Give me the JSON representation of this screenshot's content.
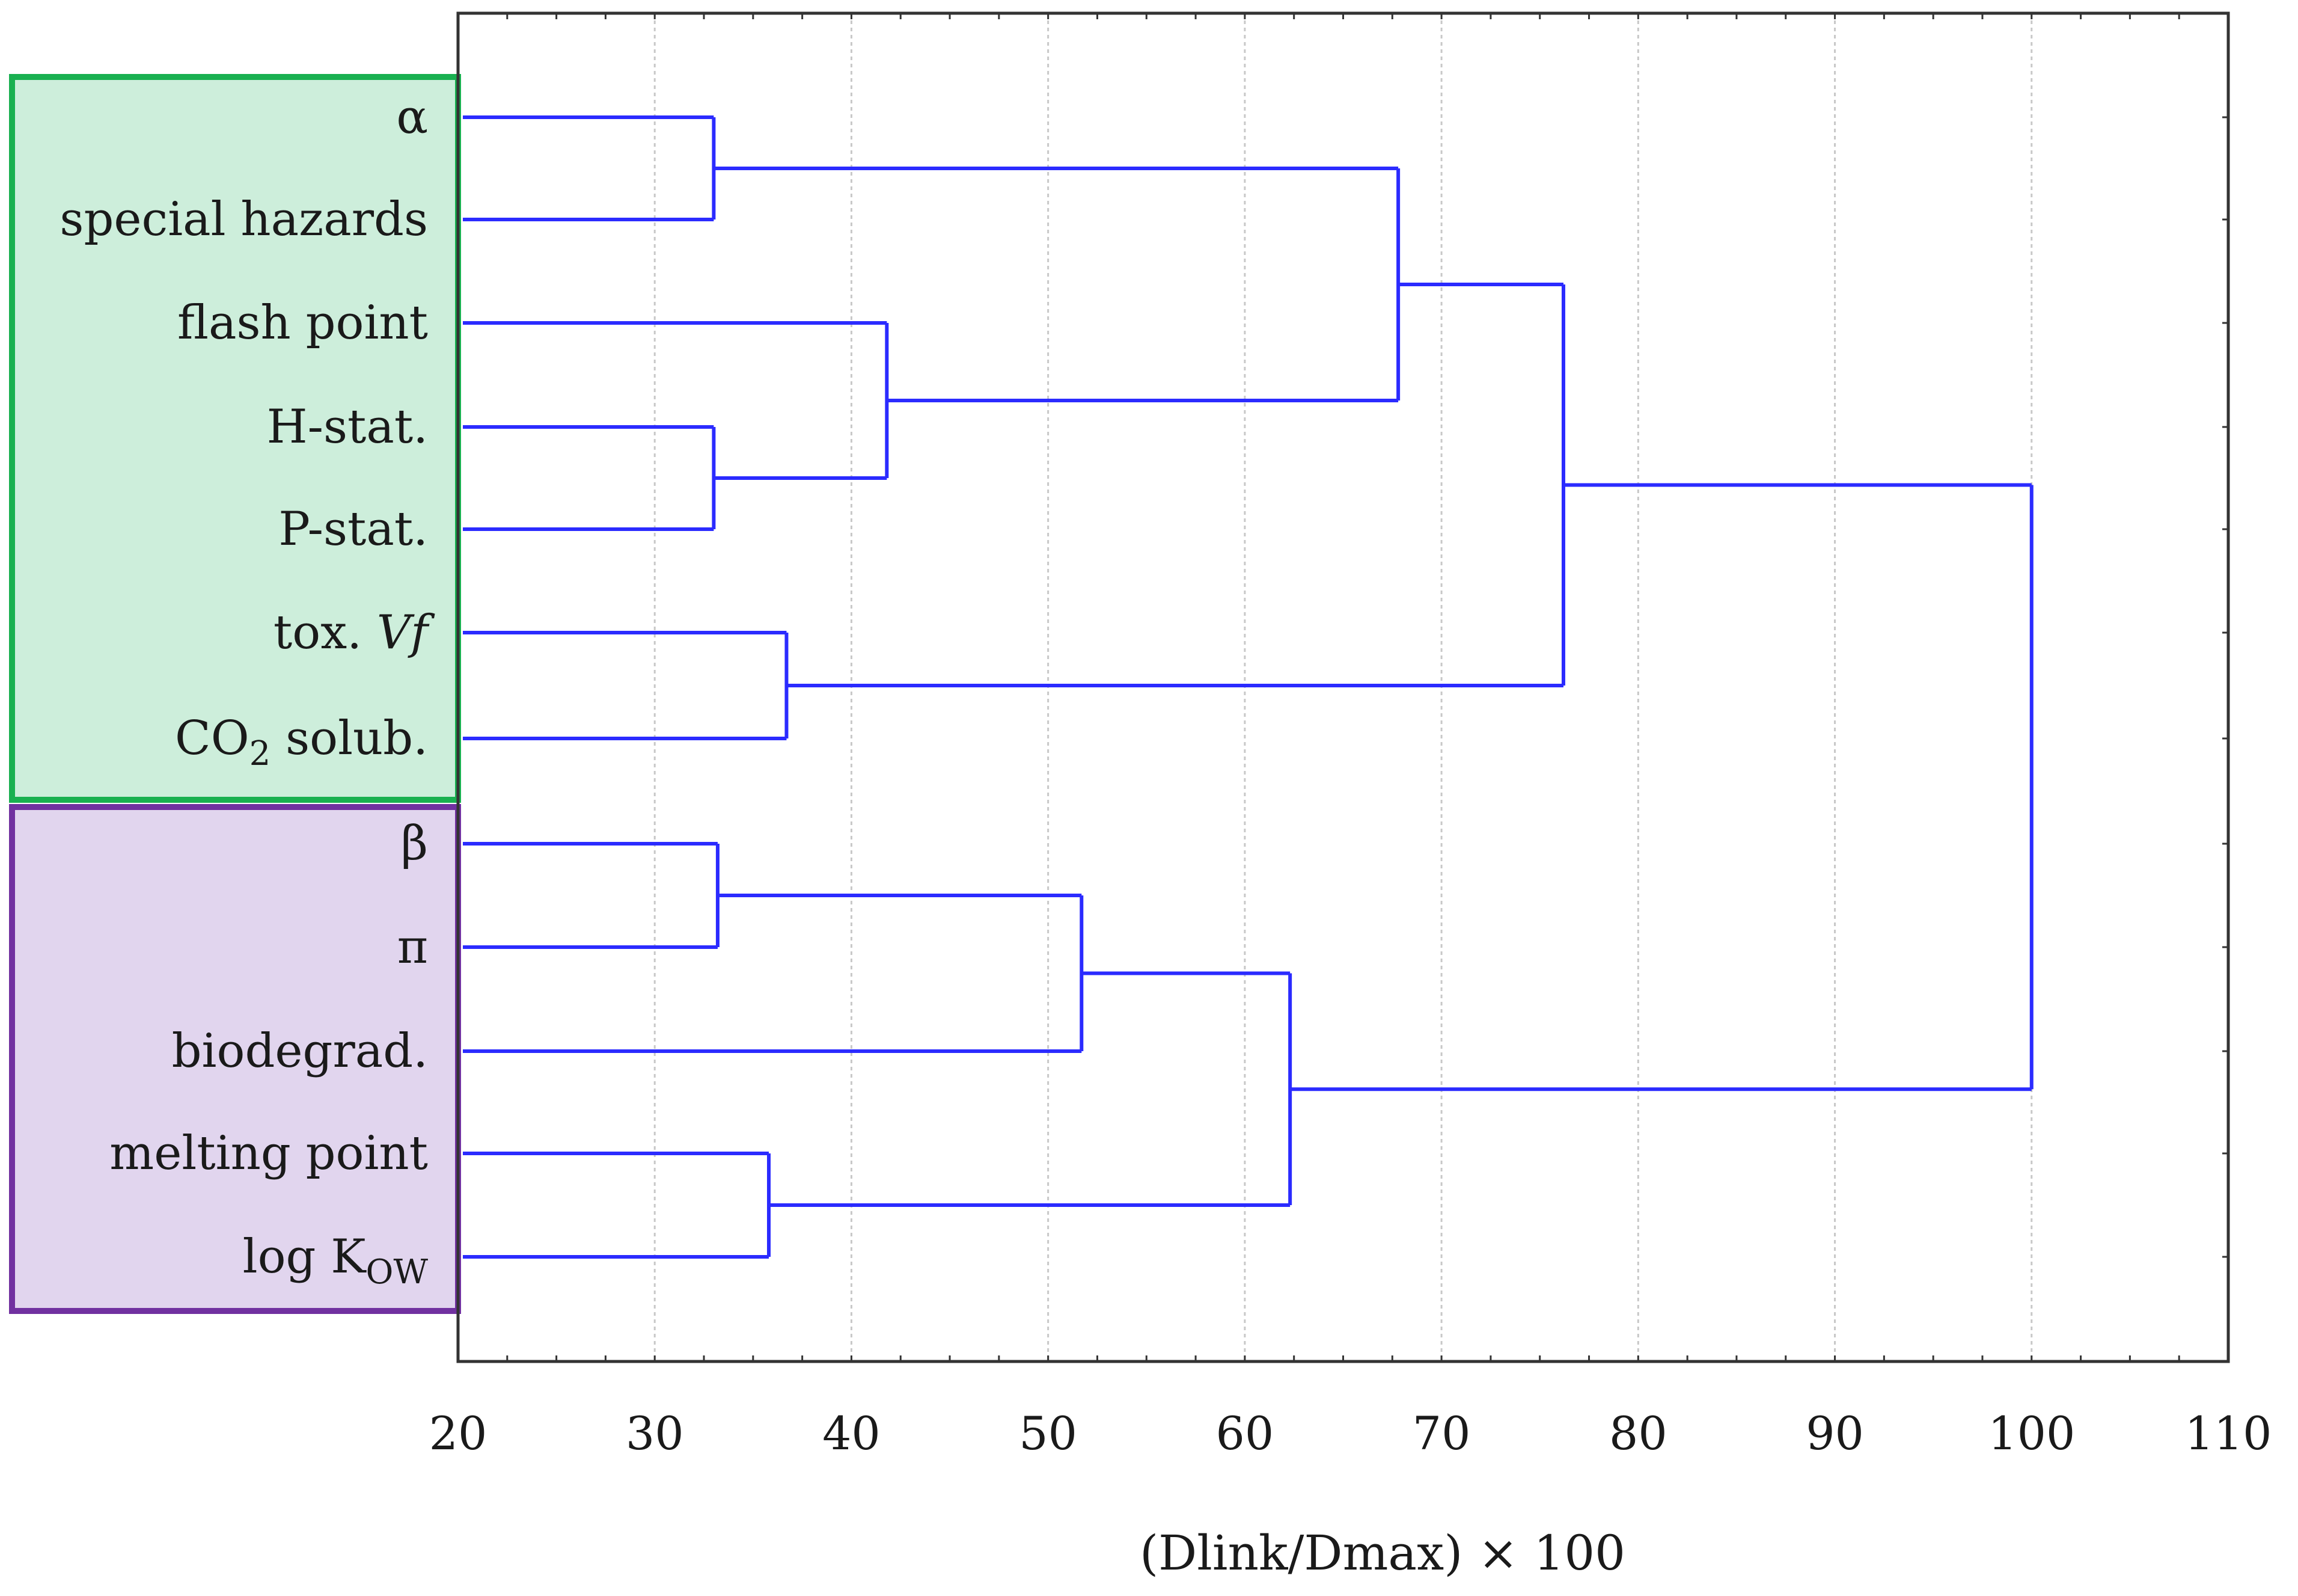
{
  "chart_data": {
    "type": "dendrogram",
    "xlabel": "(Dlink/Dmax) × 100",
    "xlim": [
      20,
      110
    ],
    "xticks": [
      20,
      30,
      40,
      50,
      60,
      70,
      80,
      90,
      100,
      110
    ],
    "grid": "vertical dotted",
    "leaves": [
      {
        "id": "alpha",
        "label": "α",
        "group": 1
      },
      {
        "id": "hazards",
        "label": "special hazards",
        "group": 1
      },
      {
        "id": "flash",
        "label": "flash point",
        "group": 1
      },
      {
        "id": "hstat",
        "label": "H-stat.",
        "group": 1
      },
      {
        "id": "pstat",
        "label": "P-stat.",
        "group": 1
      },
      {
        "id": "tox",
        "label": "tox. ",
        "label_italic": "Vf",
        "group": 1
      },
      {
        "id": "co2",
        "label": "CO",
        "label_sub": "2",
        "label_suffix": " solub.",
        "group": 1
      },
      {
        "id": "beta",
        "label": "β",
        "group": 2
      },
      {
        "id": "pi",
        "label": "π",
        "group": 2
      },
      {
        "id": "biodeg",
        "label": "biodegrad.",
        "group": 2
      },
      {
        "id": "melt",
        "label": "melting point",
        "group": 2
      },
      {
        "id": "logk",
        "label": "log K",
        "label_sub": "OW",
        "group": 2
      }
    ],
    "merges": [
      {
        "id": "m1",
        "children": [
          "alpha",
          "hazards"
        ],
        "height": 33.0
      },
      {
        "id": "m2",
        "children": [
          "hstat",
          "pstat"
        ],
        "height": 33.0
      },
      {
        "id": "m3",
        "children": [
          "flash",
          "m2"
        ],
        "height": 41.8
      },
      {
        "id": "m4",
        "children": [
          "m1",
          "m3"
        ],
        "height": 67.8
      },
      {
        "id": "m5",
        "children": [
          "tox",
          "co2"
        ],
        "height": 36.7
      },
      {
        "id": "m6",
        "children": [
          "m4",
          "m5"
        ],
        "height": 76.2
      },
      {
        "id": "m7",
        "children": [
          "beta",
          "pi"
        ],
        "height": 33.2
      },
      {
        "id": "m8",
        "children": [
          "m7",
          "biodeg"
        ],
        "height": 51.7
      },
      {
        "id": "m9",
        "children": [
          "melt",
          "logk"
        ],
        "height": 35.8
      },
      {
        "id": "m10",
        "children": [
          "m8",
          "m9"
        ],
        "height": 62.3
      },
      {
        "id": "root",
        "children": [
          "m6",
          "m10"
        ],
        "height": 100.0
      }
    ],
    "groups": [
      {
        "id": 1,
        "fill": "#cdeedb",
        "border": "#19b050"
      },
      {
        "id": 2,
        "fill": "#e1d5ee",
        "border": "#7131a0"
      }
    ],
    "link_color": "#2b2bff"
  }
}
